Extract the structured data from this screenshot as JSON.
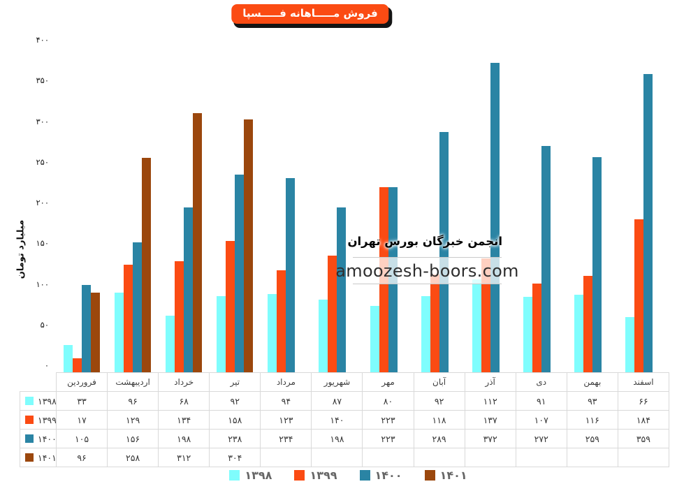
{
  "title_badge": {
    "text": "فروش مـــــاهانه فـــــسپا",
    "color": "#FB4B13",
    "text_color": "#FFFFFF"
  },
  "watermark": {
    "line1": "انجمن خبرگان بورس تهران",
    "line2": "amoozesh-boors.com"
  },
  "chart_data": {
    "type": "bar",
    "title": "فروش مـــــاهانه فـــــسپا",
    "xlabel": "",
    "ylabel": "میلیارد تومان",
    "ylim": [
      0,
      400
    ],
    "ytick_step": 50,
    "grid": false,
    "legend_position": "bottom",
    "categories": [
      "فروردین",
      "اردیبهشت",
      "خرداد",
      "تیر",
      "مرداد",
      "شهریور",
      "مهر",
      "آبان",
      "آذر",
      "دی",
      "بهمن",
      "اسفند"
    ],
    "series": [
      {
        "name": "۱۳۹۸",
        "color": "#7FFDFD",
        "values": [
          33,
          96,
          68,
          92,
          94,
          87,
          80,
          92,
          112,
          91,
          93,
          66
        ]
      },
      {
        "name": "۱۳۹۹",
        "color": "#FB4B13",
        "values": [
          17,
          129,
          134,
          158,
          123,
          140,
          223,
          118,
          137,
          107,
          116,
          184
        ]
      },
      {
        "name": "۱۴۰۰",
        "color": "#2A84A4",
        "values": [
          105,
          156,
          198,
          238,
          234,
          198,
          223,
          289,
          372,
          272,
          259,
          359
        ]
      },
      {
        "name": "۱۴۰۱",
        "color": "#9B470D",
        "values": [
          96,
          258,
          312,
          304,
          null,
          null,
          null,
          null,
          null,
          null,
          null,
          null
        ]
      }
    ]
  }
}
